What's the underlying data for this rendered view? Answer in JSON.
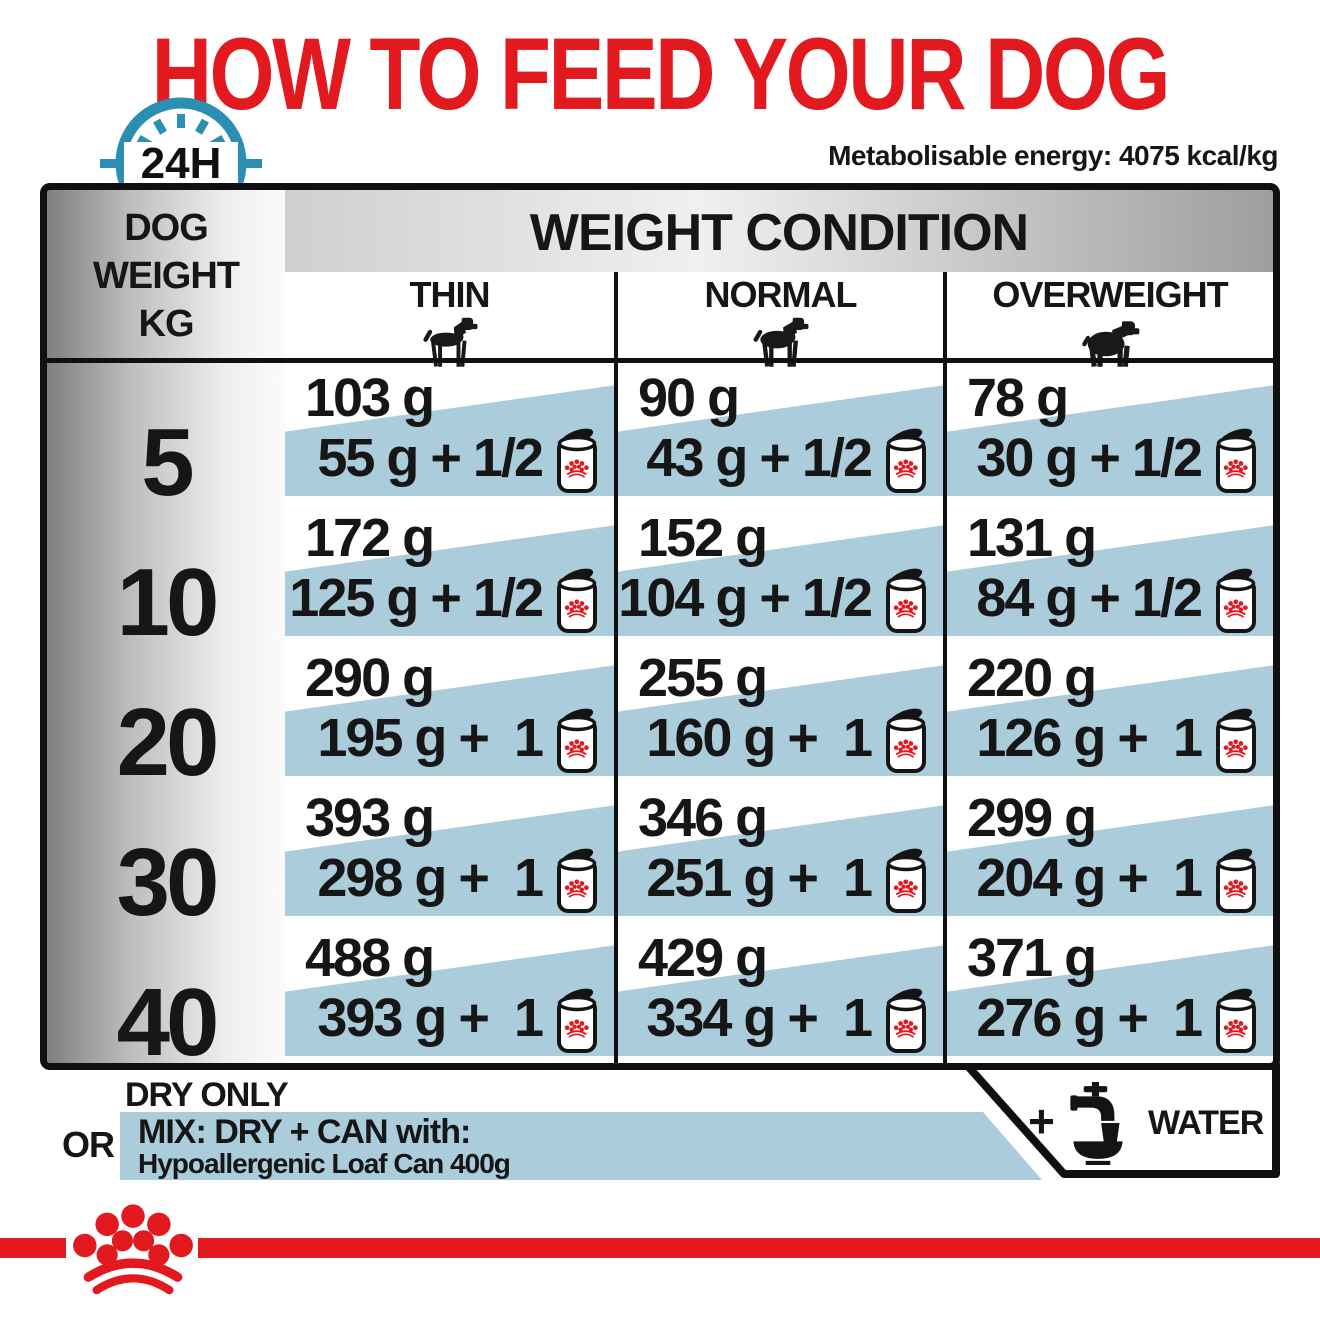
{
  "title": "HOW TO FEED YOUR DOG",
  "energy_note": "Metabolisable energy: 4075 kcal/kg",
  "clock_label": "24H",
  "colors": {
    "brand_red": "#e2191f",
    "band_blue": "#abccdb",
    "clock_blue": "#2b8fb2"
  },
  "icons": {
    "clock": "24h-clock-icon",
    "thin_dog": "thin-dog-icon",
    "normal_dog": "normal-dog-icon",
    "overweight_dog": "overweight-dog-icon",
    "can": "food-can-icon",
    "crown": "royal-canin-crown-logo",
    "water_tap": "water-tap-bowl-icon"
  },
  "table": {
    "corner": [
      "DOG",
      "WEIGHT",
      "KG"
    ],
    "header": "WEIGHT CONDITION",
    "conditions": [
      "THIN",
      "NORMAL",
      "OVERWEIGHT"
    ],
    "rows": [
      {
        "weight": "5",
        "cells": [
          [
            "103 g",
            "55 g + 1/2"
          ],
          [
            "90 g",
            "43 g + 1/2"
          ],
          [
            "78 g",
            "30 g + 1/2"
          ]
        ]
      },
      {
        "weight": "10",
        "cells": [
          [
            "172 g",
            "125 g + 1/2"
          ],
          [
            "152 g",
            "104 g + 1/2"
          ],
          [
            "131 g",
            "84 g + 1/2"
          ]
        ]
      },
      {
        "weight": "20",
        "cells": [
          [
            "290 g",
            "195 g +  1"
          ],
          [
            "255 g",
            "160 g +  1"
          ],
          [
            "220 g",
            "126 g +  1"
          ]
        ]
      },
      {
        "weight": "30",
        "cells": [
          [
            "393 g",
            "298 g +  1"
          ],
          [
            "346 g",
            "251 g +  1"
          ],
          [
            "299 g",
            "204 g +  1"
          ]
        ]
      },
      {
        "weight": "40",
        "cells": [
          [
            "488 g",
            "393 g +  1"
          ],
          [
            "429 g",
            "334 g +  1"
          ],
          [
            "371 g",
            "276 g +  1"
          ]
        ]
      }
    ]
  },
  "legend": {
    "dry_only": "DRY ONLY",
    "or": "OR",
    "plus": "+",
    "mix_title": "MIX: DRY + CAN with:",
    "mix_subtitle": "Hypoallergenic Loaf Can 400g",
    "water": "WATER"
  },
  "chart_data": {
    "type": "table",
    "title": "HOW TO FEED YOUR DOG",
    "note": "Metabolisable energy: 4075 kcal/kg",
    "row_axis": "DOG WEIGHT KG",
    "column_group": "WEIGHT CONDITION",
    "columns": [
      "THIN",
      "NORMAL",
      "OVERWEIGHT"
    ],
    "units": "grams per day",
    "mix_can_product": "Hypoallergenic Loaf Can 400g",
    "rows": [
      {
        "dog_weight_kg": 5,
        "thin": {
          "dry_only_g": 103,
          "mix_dry_g": 55,
          "mix_cans": 0.5
        },
        "normal": {
          "dry_only_g": 90,
          "mix_dry_g": 43,
          "mix_cans": 0.5
        },
        "overweight": {
          "dry_only_g": 78,
          "mix_dry_g": 30,
          "mix_cans": 0.5
        }
      },
      {
        "dog_weight_kg": 10,
        "thin": {
          "dry_only_g": 172,
          "mix_dry_g": 125,
          "mix_cans": 0.5
        },
        "normal": {
          "dry_only_g": 152,
          "mix_dry_g": 104,
          "mix_cans": 0.5
        },
        "overweight": {
          "dry_only_g": 131,
          "mix_dry_g": 84,
          "mix_cans": 0.5
        }
      },
      {
        "dog_weight_kg": 20,
        "thin": {
          "dry_only_g": 290,
          "mix_dry_g": 195,
          "mix_cans": 1
        },
        "normal": {
          "dry_only_g": 255,
          "mix_dry_g": 160,
          "mix_cans": 1
        },
        "overweight": {
          "dry_only_g": 220,
          "mix_dry_g": 126,
          "mix_cans": 1
        }
      },
      {
        "dog_weight_kg": 30,
        "thin": {
          "dry_only_g": 393,
          "mix_dry_g": 298,
          "mix_cans": 1
        },
        "normal": {
          "dry_only_g": 346,
          "mix_dry_g": 251,
          "mix_cans": 1
        },
        "overweight": {
          "dry_only_g": 299,
          "mix_dry_g": 204,
          "mix_cans": 1
        }
      },
      {
        "dog_weight_kg": 40,
        "thin": {
          "dry_only_g": 488,
          "mix_dry_g": 393,
          "mix_cans": 1
        },
        "normal": {
          "dry_only_g": 429,
          "mix_dry_g": 334,
          "mix_cans": 1
        },
        "overweight": {
          "dry_only_g": 371,
          "mix_dry_g": 276,
          "mix_cans": 1
        }
      }
    ]
  }
}
